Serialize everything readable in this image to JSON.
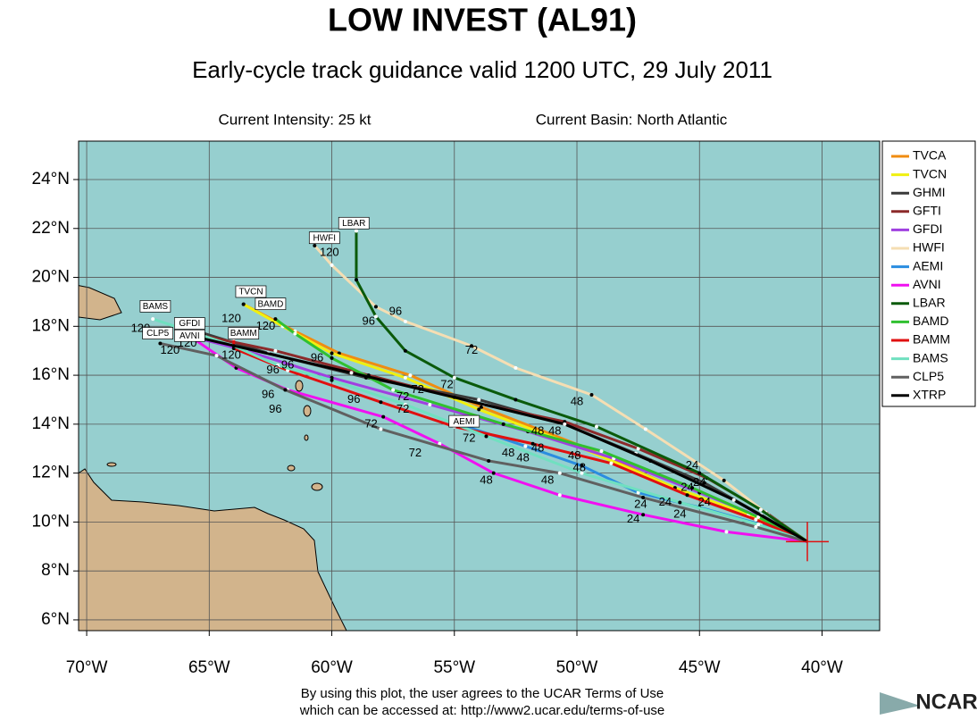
{
  "header": {
    "title": "LOW INVEST (AL91)",
    "subtitle": "Early-cycle track guidance valid 1200 UTC, 29 July 2011",
    "intensity": "Current Intensity: 25 kt",
    "basin": "Current Basin: North Atlantic"
  },
  "map": {
    "lonlim": [
      -70.33,
      -37.65
    ],
    "latlim": [
      5.56,
      25.57
    ],
    "lonticks": [
      {
        "value": -70,
        "label": "70°W"
      },
      {
        "value": -65,
        "label": "65°W"
      },
      {
        "value": -60,
        "label": "60°W"
      },
      {
        "value": -55,
        "label": "55°W"
      },
      {
        "value": -50,
        "label": "50°W"
      },
      {
        "value": -45,
        "label": "45°W"
      },
      {
        "value": -40,
        "label": "40°W"
      }
    ],
    "latticks": [
      {
        "value": 6,
        "label": "6°N"
      },
      {
        "value": 8,
        "label": "8°N"
      },
      {
        "value": 10,
        "label": "10°N"
      },
      {
        "value": 12,
        "label": "12°N"
      },
      {
        "value": 14,
        "label": "14°N"
      },
      {
        "value": 16,
        "label": "16°N"
      },
      {
        "value": 18,
        "label": "18°N"
      },
      {
        "value": 20,
        "label": "20°N"
      },
      {
        "value": 22,
        "label": "22°N"
      },
      {
        "value": 24,
        "label": "24°N"
      }
    ],
    "models": [
      {
        "name": "TVCA",
        "color": "#f08c10",
        "track": [
          [
            -40.6,
            9.2
          ],
          [
            -42.9,
            10.2
          ],
          [
            -45.8,
            11.3
          ],
          [
            -49.8,
            13.1
          ],
          [
            -53.9,
            14.7
          ],
          [
            -56.8,
            16.0
          ],
          [
            -59.7,
            16.9
          ],
          [
            -61.5,
            17.8
          ],
          [
            -63.6,
            18.9
          ]
        ]
      },
      {
        "name": "TVCN",
        "color": "#f0f010",
        "track": [
          [
            -40.6,
            9.2
          ],
          [
            -43.0,
            10.3
          ],
          [
            -46.0,
            11.4
          ],
          [
            -50.0,
            13.1
          ],
          [
            -54.0,
            14.6
          ],
          [
            -57.0,
            15.9
          ],
          [
            -60.0,
            16.9
          ],
          [
            -62.0,
            18.0
          ],
          [
            -63.6,
            18.9
          ]
        ]
      },
      {
        "name": "GHMI",
        "color": "#3a3a3a",
        "track": [
          [
            -40.6,
            9.2
          ],
          [
            -42.5,
            10.3
          ],
          [
            -44.8,
            11.6
          ],
          [
            -47.6,
            12.8
          ],
          [
            -50.5,
            14.0
          ],
          [
            -54.0,
            15.0
          ],
          [
            -58.6,
            15.9
          ],
          [
            -62.6,
            16.9
          ],
          [
            -65.5,
            17.8
          ]
        ]
      },
      {
        "name": "GFTI",
        "color": "#8c2a2a",
        "track": [
          [
            -40.6,
            9.2
          ],
          [
            -42.3,
            10.4
          ],
          [
            -44.7,
            11.8
          ],
          [
            -47.5,
            13.0
          ],
          [
            -50.5,
            14.1
          ],
          [
            -53.8,
            14.8
          ],
          [
            -58.5,
            16.0
          ],
          [
            -62.3,
            17.0
          ],
          [
            -65.2,
            17.6
          ]
        ]
      },
      {
        "name": "GFDI",
        "color": "#a040e0",
        "track": [
          [
            -40.6,
            9.2
          ],
          [
            -42.5,
            10.2
          ],
          [
            -45.0,
            11.2
          ],
          [
            -48.5,
            12.6
          ],
          [
            -52.0,
            13.7
          ],
          [
            -56.0,
            14.8
          ],
          [
            -60.0,
            15.9
          ],
          [
            -63.5,
            17.0
          ],
          [
            -65.8,
            17.6
          ]
        ]
      },
      {
        "name": "HWFI",
        "color": "#f5deb3",
        "track": [
          [
            -40.6,
            9.2
          ],
          [
            -42.2,
            10.3
          ],
          [
            -44.0,
            11.7
          ],
          [
            -47.2,
            13.8
          ],
          [
            -49.4,
            15.2
          ],
          [
            -52.5,
            16.3
          ],
          [
            -54.3,
            17.2
          ],
          [
            -57.0,
            18.2
          ],
          [
            -58.2,
            18.8
          ],
          [
            -60.0,
            20.5
          ],
          [
            -60.7,
            21.3
          ]
        ]
      },
      {
        "name": "AEMI",
        "color": "#2a8de0",
        "track": [
          [
            -40.6,
            9.2
          ],
          [
            -42.5,
            9.9
          ],
          [
            -45.0,
            10.6
          ],
          [
            -47.5,
            11.2
          ],
          [
            -49.8,
            12.3
          ],
          [
            -52.1,
            13.1
          ],
          [
            -54.8,
            14.0
          ]
        ]
      },
      {
        "name": "AVNI",
        "color": "#f010f0",
        "track": [
          [
            -40.6,
            9.2
          ],
          [
            -43.9,
            9.6
          ],
          [
            -47.3,
            10.3
          ],
          [
            -50.7,
            11.1
          ],
          [
            -53.4,
            12.0
          ],
          [
            -55.6,
            13.2
          ],
          [
            -57.9,
            14.3
          ],
          [
            -61.8,
            15.4
          ],
          [
            -63.9,
            16.3
          ],
          [
            -65.8,
            17.6
          ]
        ]
      },
      {
        "name": "LBAR",
        "color": "#0a5a0a",
        "track": [
          [
            -40.6,
            9.2
          ],
          [
            -42.5,
            10.5
          ],
          [
            -45.0,
            12.0
          ],
          [
            -49.2,
            13.9
          ],
          [
            -52.5,
            15.0
          ],
          [
            -55.0,
            15.9
          ],
          [
            -57.0,
            17.0
          ],
          [
            -58.2,
            18.4
          ],
          [
            -59.0,
            19.9
          ],
          [
            -59.0,
            21.9
          ]
        ]
      },
      {
        "name": "BAMD",
        "color": "#30c030",
        "track": [
          [
            -40.6,
            9.2
          ],
          [
            -42.6,
            10.2
          ],
          [
            -45.3,
            11.4
          ],
          [
            -49.0,
            12.9
          ],
          [
            -53.0,
            14.0
          ],
          [
            -57.5,
            15.4
          ],
          [
            -60.0,
            16.7
          ],
          [
            -61.5,
            17.7
          ],
          [
            -62.3,
            18.3
          ]
        ]
      },
      {
        "name": "BAMM",
        "color": "#e01010",
        "track": [
          [
            -40.6,
            9.2
          ],
          [
            -42.7,
            10.1
          ],
          [
            -45.5,
            11.1
          ],
          [
            -48.6,
            12.4
          ],
          [
            -51.8,
            13.2
          ],
          [
            -55.0,
            13.9
          ],
          [
            -58.0,
            14.9
          ],
          [
            -61.8,
            16.2
          ],
          [
            -64.0,
            17.1
          ],
          [
            -64.0,
            17.5
          ]
        ]
      },
      {
        "name": "BAMS",
        "color": "#70e0c0",
        "track": [
          [
            -40.6,
            9.2
          ],
          [
            -42.6,
            9.9
          ],
          [
            -45.8,
            10.8
          ],
          [
            -49.8,
            12.0
          ],
          [
            -53.7,
            13.5
          ],
          [
            -57.0,
            14.8
          ],
          [
            -60.0,
            15.8
          ],
          [
            -62.2,
            16.4
          ],
          [
            -64.0,
            17.2
          ],
          [
            -67.3,
            18.3
          ]
        ]
      },
      {
        "name": "CLP5",
        "color": "#606060",
        "track": [
          [
            -40.6,
            9.2
          ],
          [
            -42.7,
            9.8
          ],
          [
            -47.3,
            11.0
          ],
          [
            -50.7,
            12.0
          ],
          [
            -53.6,
            12.5
          ],
          [
            -58.0,
            13.8
          ],
          [
            -61.9,
            15.4
          ],
          [
            -64.7,
            16.8
          ],
          [
            -67.0,
            17.3
          ]
        ]
      },
      {
        "name": "XTRP",
        "color": "#000000",
        "track": [
          [
            -40.6,
            9.2
          ],
          [
            -43.6,
            10.9
          ],
          [
            -47.0,
            12.5
          ],
          [
            -50.5,
            14.0
          ],
          [
            -55.0,
            15.1
          ],
          [
            -59.2,
            16.1
          ],
          [
            -65.7,
            17.6
          ]
        ]
      }
    ],
    "hour_labels": [
      {
        "text": "120",
        "lon": -67.8,
        "lat": 17.9
      },
      {
        "text": "120",
        "lon": -66.6,
        "lat": 17.0
      },
      {
        "text": "120",
        "lon": -65.9,
        "lat": 17.3
      },
      {
        "text": "120",
        "lon": -64.1,
        "lat": 16.8
      },
      {
        "text": "120",
        "lon": -64.1,
        "lat": 18.3
      },
      {
        "text": "120",
        "lon": -62.7,
        "lat": 18.0
      },
      {
        "text": "120",
        "lon": -60.1,
        "lat": 21.0
      },
      {
        "text": "96",
        "lon": -58.5,
        "lat": 18.2
      },
      {
        "text": "96",
        "lon": -57.4,
        "lat": 18.6
      },
      {
        "text": "96",
        "lon": -60.6,
        "lat": 16.7
      },
      {
        "text": "96",
        "lon": -62.4,
        "lat": 16.2
      },
      {
        "text": "96",
        "lon": -61.8,
        "lat": 16.4
      },
      {
        "text": "96",
        "lon": -62.6,
        "lat": 15.2
      },
      {
        "text": "96",
        "lon": -62.3,
        "lat": 14.6
      },
      {
        "text": "96",
        "lon": -59.1,
        "lat": 15.0
      },
      {
        "text": "72",
        "lon": -54.3,
        "lat": 17.0
      },
      {
        "text": "72",
        "lon": -55.3,
        "lat": 15.6
      },
      {
        "text": "72",
        "lon": -56.5,
        "lat": 15.4
      },
      {
        "text": "72",
        "lon": -57.1,
        "lat": 15.1
      },
      {
        "text": "72",
        "lon": -58.4,
        "lat": 14.0
      },
      {
        "text": "72",
        "lon": -57.1,
        "lat": 14.6
      },
      {
        "text": "72",
        "lon": -54.4,
        "lat": 13.4
      },
      {
        "text": "72",
        "lon": -56.6,
        "lat": 12.8
      },
      {
        "text": "48",
        "lon": -50.0,
        "lat": 14.9
      },
      {
        "text": "48",
        "lon": -50.9,
        "lat": 13.7
      },
      {
        "text": "48",
        "lon": -51.6,
        "lat": 13.7
      },
      {
        "text": "48",
        "lon": -52.8,
        "lat": 12.8
      },
      {
        "text": "48",
        "lon": -52.2,
        "lat": 12.6
      },
      {
        "text": "48",
        "lon": -51.6,
        "lat": 13.0
      },
      {
        "text": "48",
        "lon": -50.1,
        "lat": 12.7
      },
      {
        "text": "48",
        "lon": -49.9,
        "lat": 12.2
      },
      {
        "text": "48",
        "lon": -51.2,
        "lat": 11.7
      },
      {
        "text": "48",
        "lon": -53.7,
        "lat": 11.7
      },
      {
        "text": "24",
        "lon": -45.3,
        "lat": 12.3
      },
      {
        "text": "24",
        "lon": -45.5,
        "lat": 11.4
      },
      {
        "text": "24",
        "lon": -46.4,
        "lat": 10.8
      },
      {
        "text": "24",
        "lon": -47.4,
        "lat": 10.7
      },
      {
        "text": "24",
        "lon": -45.8,
        "lat": 10.3
      },
      {
        "text": "24",
        "lon": -47.7,
        "lat": 10.1
      },
      {
        "text": "24",
        "lon": -44.8,
        "lat": 10.8
      },
      {
        "text": "24",
        "lon": -45.0,
        "lat": 11.6
      }
    ],
    "box_labels": [
      {
        "text": "LBAR",
        "lon": -59.1,
        "lat": 22.2
      },
      {
        "text": "HWFI",
        "lon": -60.3,
        "lat": 21.6
      },
      {
        "text": "TVCN",
        "lon": -63.3,
        "lat": 19.4
      },
      {
        "text": "BAMD",
        "lon": -62.5,
        "lat": 18.9
      },
      {
        "text": "BAMS",
        "lon": -67.2,
        "lat": 18.8
      },
      {
        "text": "GFDI",
        "lon": -65.8,
        "lat": 18.1
      },
      {
        "text": "AVNI",
        "lon": -65.8,
        "lat": 17.6
      },
      {
        "text": "CLP5",
        "lon": -67.1,
        "lat": 17.7
      },
      {
        "text": "BAMM",
        "lon": -63.6,
        "lat": 17.7
      },
      {
        "text": "AEMI",
        "lon": -54.6,
        "lat": 14.1
      }
    ]
  },
  "footer": {
    "line1": "By using this plot, the user agrees to the UCAR Terms of Use",
    "line2": "which can be accessed at: http://www2.ucar.edu/terms-of-use",
    "logo": "NCAR"
  }
}
